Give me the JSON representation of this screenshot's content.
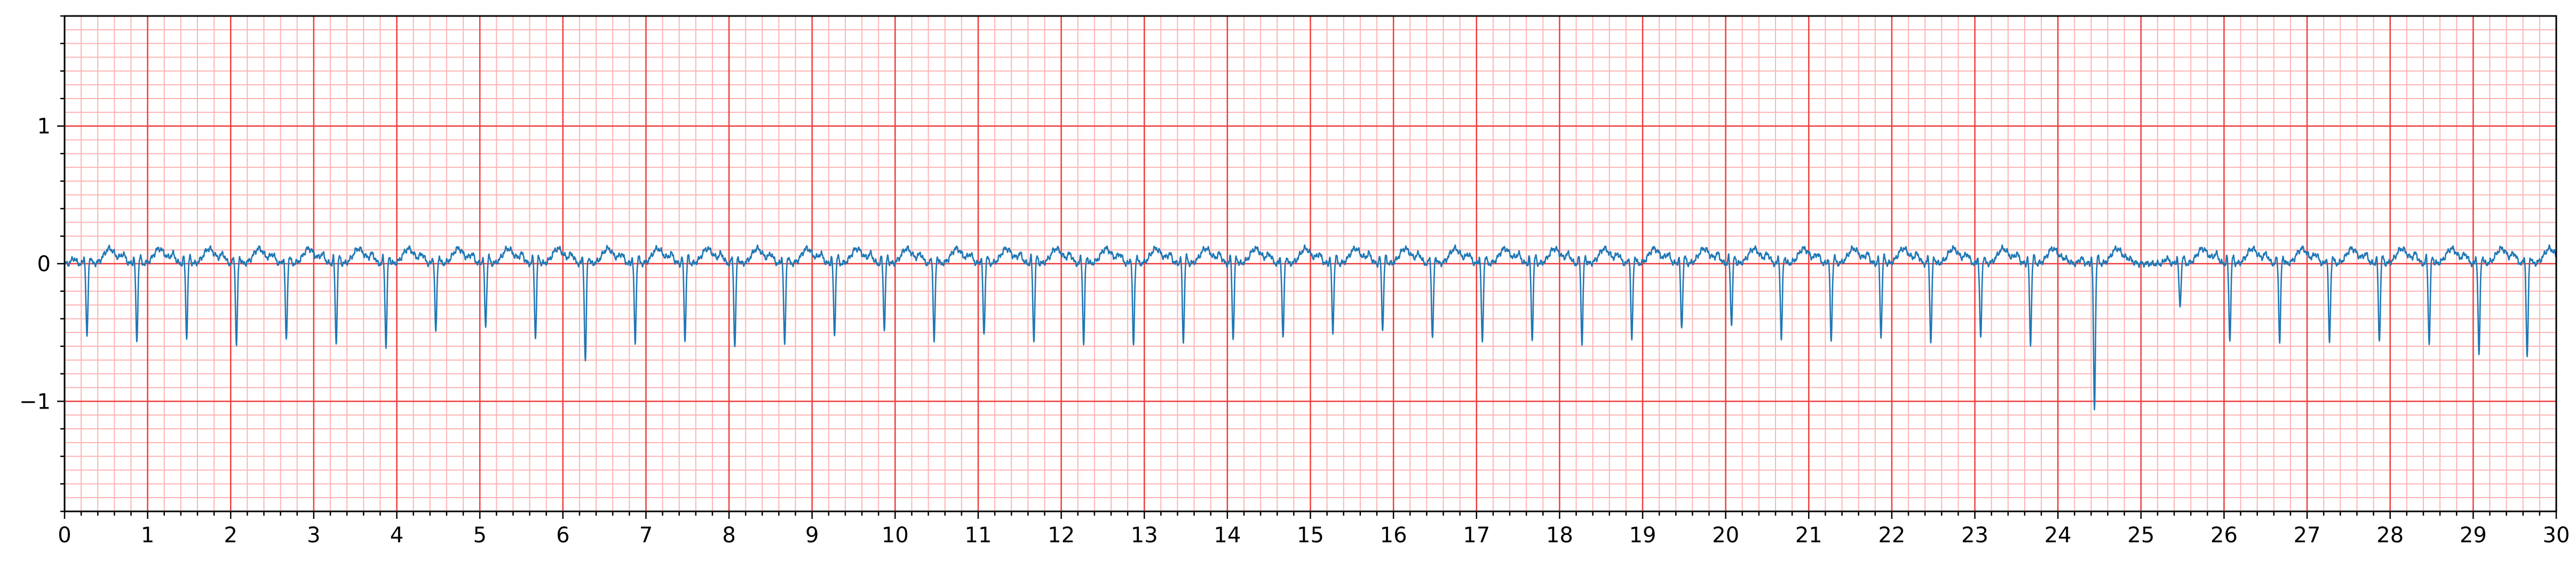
{
  "chart_data": {
    "type": "line",
    "title": "",
    "xlabel": "",
    "ylabel": "",
    "xlim": [
      0,
      30
    ],
    "ylim": [
      -1.8,
      1.8
    ],
    "x_ticks": [
      "0",
      "1",
      "2",
      "3",
      "4",
      "5",
      "6",
      "7",
      "8",
      "9",
      "10",
      "11",
      "12",
      "13",
      "14",
      "15",
      "16",
      "17",
      "18",
      "19",
      "20",
      "21",
      "22",
      "23",
      "24",
      "25",
      "26",
      "27",
      "28",
      "29",
      "30"
    ],
    "x_tick_values": [
      0,
      1,
      2,
      3,
      4,
      5,
      6,
      7,
      8,
      9,
      10,
      11,
      12,
      13,
      14,
      15,
      16,
      17,
      18,
      19,
      20,
      21,
      22,
      23,
      24,
      25,
      26,
      27,
      28,
      29,
      30
    ],
    "y_ticks": [
      "−1",
      "0",
      "1"
    ],
    "y_tick_values": [
      -1,
      0,
      1
    ],
    "x_major_grid_step": 1,
    "x_minor_grid_step": 0.2,
    "y_major_grid_step": 1,
    "y_minor_grid_step": 0.1,
    "grid": true,
    "legend": "none",
    "colors": {
      "trace": "#1f77b4",
      "major_grid": "#f03c3c",
      "minor_grid": "#ffb3b3"
    },
    "series": [
      {
        "beat_times": [
          0.27,
          0.87,
          1.47,
          2.07,
          2.67,
          3.27,
          3.87,
          4.47,
          5.07,
          5.67,
          6.27,
          6.87,
          7.47,
          8.07,
          8.67,
          9.27,
          9.87,
          10.47,
          11.07,
          11.67,
          12.27,
          12.87,
          13.47,
          14.07,
          14.67,
          15.27,
          15.87,
          16.47,
          17.07,
          17.67,
          18.27,
          18.87,
          19.47,
          20.07,
          20.67,
          21.27,
          21.87,
          22.47,
          23.07,
          23.67,
          24.44,
          25.47,
          26.07,
          26.67,
          27.27,
          27.87,
          28.47,
          29.07,
          29.65
        ],
        "beat_depths": [
          -0.54,
          -0.57,
          -0.53,
          -0.59,
          -0.57,
          -0.58,
          -0.6,
          -0.5,
          -0.46,
          -0.54,
          -0.72,
          -0.58,
          -0.55,
          -0.61,
          -0.6,
          -0.52,
          -0.47,
          -0.57,
          -0.53,
          -0.56,
          -0.58,
          -0.6,
          -0.57,
          -0.55,
          -0.55,
          -0.5,
          -0.47,
          -0.55,
          -0.58,
          -0.55,
          -0.58,
          -0.56,
          -0.48,
          -0.44,
          -0.55,
          -0.57,
          -0.53,
          -0.58,
          -0.55,
          -0.58,
          -1.05,
          -0.32,
          -0.55,
          -0.57,
          -0.58,
          -0.57,
          -0.58,
          -0.66,
          -0.69
        ],
        "t_wave_peak": 0.11,
        "baseline": 0.0
      }
    ]
  }
}
